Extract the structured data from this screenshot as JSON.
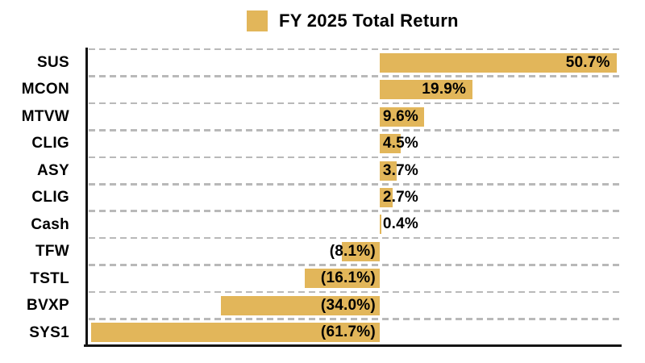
{
  "legend": {
    "label": "FY 2025 Total Return"
  },
  "colors": {
    "bar": "#e2b65a",
    "gridline": "#b9b9b9",
    "axis": "#141414",
    "text": "#000000",
    "background": "#ffffff"
  },
  "chart_data": {
    "type": "bar",
    "orientation": "horizontal",
    "title": "FY 2025 Total Return",
    "series_name": "FY 2025 Total Return",
    "categories": [
      "SUS",
      "MCON",
      "MTVW",
      "CLIG",
      "ASY",
      "CLIG",
      "Cash",
      "TFW",
      "TSTL",
      "BVXP",
      "SYS1"
    ],
    "values": [
      50.7,
      19.9,
      9.6,
      4.5,
      3.7,
      2.7,
      0.4,
      -8.1,
      -16.1,
      -34.0,
      -61.7
    ],
    "value_labels": [
      "50.7%",
      "19.9%",
      "9.6%",
      "4.5%",
      "3.7%",
      "2.7%",
      "0.4%",
      "(8.1%)",
      "(16.1%)",
      "(34.0%)",
      "(61.7%)"
    ],
    "xlabel": "",
    "ylabel": "",
    "xlim": [
      -62.8,
      51.8
    ],
    "grid": "horizontal dashed lines between category rows",
    "legend_position": "top-center",
    "label_style": "bold black; positives inside bar end (or at zero base when bar too small), negatives in parentheses right-aligned at zero baseline"
  }
}
